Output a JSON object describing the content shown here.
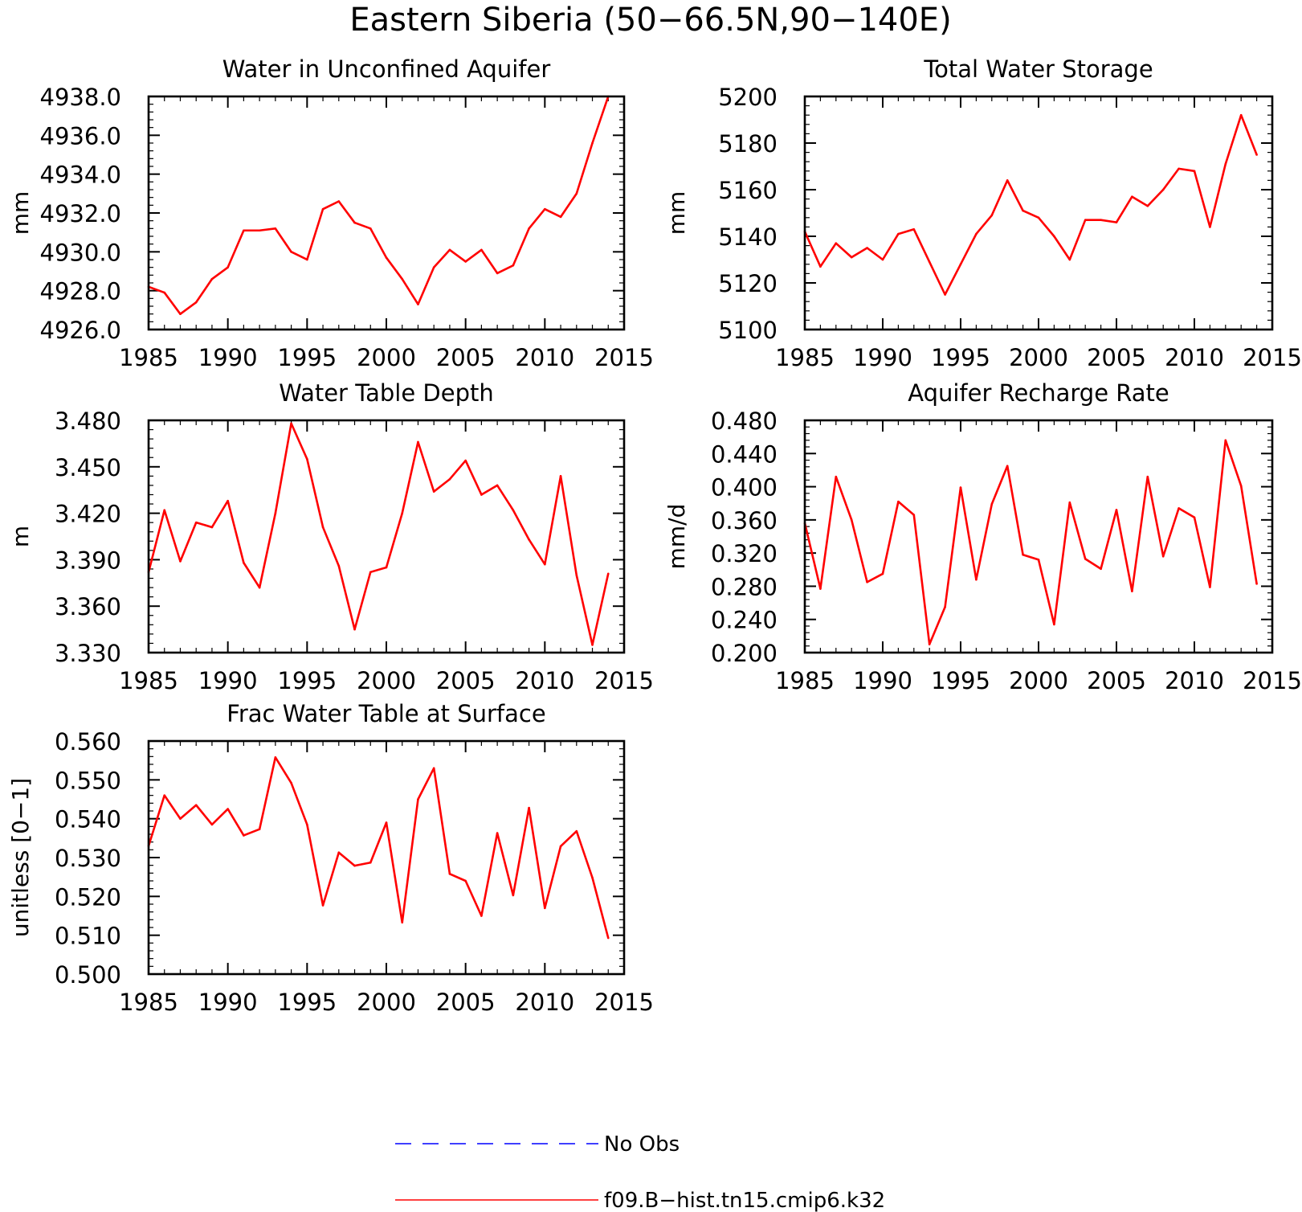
{
  "figure": {
    "title": "Eastern Siberia (50−66.5N,90−140E)"
  },
  "legend": {
    "entries": [
      {
        "label": "No Obs",
        "color": "#0000ff",
        "style": "dashed"
      },
      {
        "label": "f09.B−hist.tn15.cmip6.k32",
        "color": "#ff0000",
        "style": "solid"
      }
    ]
  },
  "chart_data": [
    {
      "type": "line",
      "title": "Water in Unconfined Aquifer",
      "ylabel": "mm",
      "xlabel": "",
      "xlim": [
        1985,
        2015
      ],
      "ylim": [
        4926.0,
        4938.0
      ],
      "xticks": [
        1985,
        1990,
        1995,
        2000,
        2005,
        2010,
        2015
      ],
      "yticks": [
        4926.0,
        4928.0,
        4930.0,
        4932.0,
        4934.0,
        4936.0,
        4938.0
      ],
      "ytick_decimals": 1,
      "x": [
        1985,
        1986,
        1987,
        1988,
        1989,
        1990,
        1991,
        1992,
        1993,
        1994,
        1995,
        1996,
        1997,
        1998,
        1999,
        2000,
        2001,
        2002,
        2003,
        2004,
        2005,
        2006,
        2007,
        2008,
        2009,
        2010,
        2011,
        2012,
        2013,
        2014
      ],
      "series": [
        {
          "color": "#ff0000",
          "values": [
            4928.2,
            4927.9,
            4926.8,
            4927.4,
            4928.6,
            4929.2,
            4931.1,
            4931.1,
            4931.2,
            4930.0,
            4929.6,
            4932.2,
            4932.6,
            4931.5,
            4931.2,
            4929.7,
            4928.6,
            4927.3,
            4929.2,
            4930.1,
            4929.5,
            4930.1,
            4928.9,
            4929.3,
            4931.2,
            4932.2,
            4931.8,
            4933.0,
            4935.6,
            4938.0
          ]
        }
      ]
    },
    {
      "type": "line",
      "title": "Total Water Storage",
      "ylabel": "mm",
      "xlabel": "",
      "xlim": [
        1985,
        2015
      ],
      "ylim": [
        5100,
        5200
      ],
      "xticks": [
        1985,
        1990,
        1995,
        2000,
        2005,
        2010,
        2015
      ],
      "yticks": [
        5100,
        5120,
        5140,
        5160,
        5180,
        5200
      ],
      "ytick_decimals": 0,
      "x": [
        1985,
        1986,
        1987,
        1988,
        1989,
        1990,
        1991,
        1992,
        1993,
        1994,
        1995,
        1996,
        1997,
        1998,
        1999,
        2000,
        2001,
        2002,
        2003,
        2004,
        2005,
        2006,
        2007,
        2008,
        2009,
        2010,
        2011,
        2012,
        2013,
        2014
      ],
      "series": [
        {
          "color": "#ff0000",
          "values": [
            5142,
            5127,
            5137,
            5131,
            5135,
            5130,
            5141,
            5143,
            5129,
            5115,
            5128,
            5141,
            5149,
            5164,
            5151,
            5148,
            5140,
            5130,
            5147,
            5147,
            5146,
            5157,
            5153,
            5160,
            5169,
            5168,
            5144,
            5171,
            5192,
            5175
          ]
        }
      ]
    },
    {
      "type": "line",
      "title": "Water Table Depth",
      "ylabel": "m",
      "xlabel": "",
      "xlim": [
        1985,
        2015
      ],
      "ylim": [
        3.33,
        3.48
      ],
      "xticks": [
        1985,
        1990,
        1995,
        2000,
        2005,
        2010,
        2015
      ],
      "yticks": [
        3.33,
        3.36,
        3.39,
        3.42,
        3.45,
        3.48
      ],
      "ytick_decimals": 3,
      "x": [
        1985,
        1986,
        1987,
        1988,
        1989,
        1990,
        1991,
        1992,
        1993,
        1994,
        1995,
        1996,
        1997,
        1998,
        1999,
        2000,
        2001,
        2002,
        2003,
        2004,
        2005,
        2006,
        2007,
        2008,
        2009,
        2010,
        2011,
        2012,
        2013,
        2014
      ],
      "series": [
        {
          "color": "#ff0000",
          "values": [
            3.382,
            3.422,
            3.389,
            3.414,
            3.411,
            3.428,
            3.388,
            3.372,
            3.42,
            3.478,
            3.455,
            3.411,
            3.386,
            3.345,
            3.382,
            3.385,
            3.42,
            3.466,
            3.434,
            3.442,
            3.454,
            3.432,
            3.438,
            3.422,
            3.403,
            3.387,
            3.444,
            3.38,
            3.335,
            3.381
          ]
        }
      ]
    },
    {
      "type": "line",
      "title": "Aquifer Recharge Rate",
      "ylabel": "mm/d",
      "xlabel": "",
      "xlim": [
        1985,
        2015
      ],
      "ylim": [
        0.2,
        0.48
      ],
      "xticks": [
        1985,
        1990,
        1995,
        2000,
        2005,
        2010,
        2015
      ],
      "yticks": [
        0.2,
        0.24,
        0.28,
        0.32,
        0.36,
        0.4,
        0.44,
        0.48
      ],
      "ytick_decimals": 3,
      "x": [
        1985,
        1986,
        1987,
        1988,
        1989,
        1990,
        1991,
        1992,
        1993,
        1994,
        1995,
        1996,
        1997,
        1998,
        1999,
        2000,
        2001,
        2002,
        2003,
        2004,
        2005,
        2006,
        2007,
        2008,
        2009,
        2010,
        2011,
        2012,
        2013,
        2014
      ],
      "series": [
        {
          "color": "#ff0000",
          "values": [
            0.356,
            0.277,
            0.412,
            0.36,
            0.285,
            0.295,
            0.382,
            0.366,
            0.21,
            0.255,
            0.399,
            0.288,
            0.379,
            0.425,
            0.318,
            0.312,
            0.234,
            0.381,
            0.313,
            0.301,
            0.372,
            0.274,
            0.412,
            0.316,
            0.374,
            0.363,
            0.279,
            0.456,
            0.401,
            0.283
          ]
        }
      ]
    },
    {
      "type": "line",
      "title": "Frac Water Table at Surface",
      "ylabel": "unitless [0−1]",
      "xlabel": "",
      "xlim": [
        1985,
        2015
      ],
      "ylim": [
        0.5,
        0.56
      ],
      "xticks": [
        1985,
        1990,
        1995,
        2000,
        2005,
        2010,
        2015
      ],
      "yticks": [
        0.5,
        0.51,
        0.52,
        0.53,
        0.54,
        0.55,
        0.56
      ],
      "ytick_decimals": 3,
      "x": [
        1985,
        1986,
        1987,
        1988,
        1989,
        1990,
        1991,
        1992,
        1993,
        1994,
        1995,
        1996,
        1997,
        1998,
        1999,
        2000,
        2001,
        2002,
        2003,
        2004,
        2005,
        2006,
        2007,
        2008,
        2009,
        2010,
        2011,
        2012,
        2013,
        2014
      ],
      "series": [
        {
          "color": "#ff0000",
          "values": [
            0.533,
            0.546,
            0.54,
            0.5435,
            0.5385,
            0.5425,
            0.5357,
            0.5373,
            0.5558,
            0.5492,
            0.5385,
            0.5177,
            0.5313,
            0.5279,
            0.5287,
            0.539,
            0.5133,
            0.545,
            0.553,
            0.5258,
            0.524,
            0.515,
            0.5363,
            0.5203,
            0.5428,
            0.517,
            0.5329,
            0.5368,
            0.5248,
            0.5093
          ]
        }
      ]
    }
  ]
}
